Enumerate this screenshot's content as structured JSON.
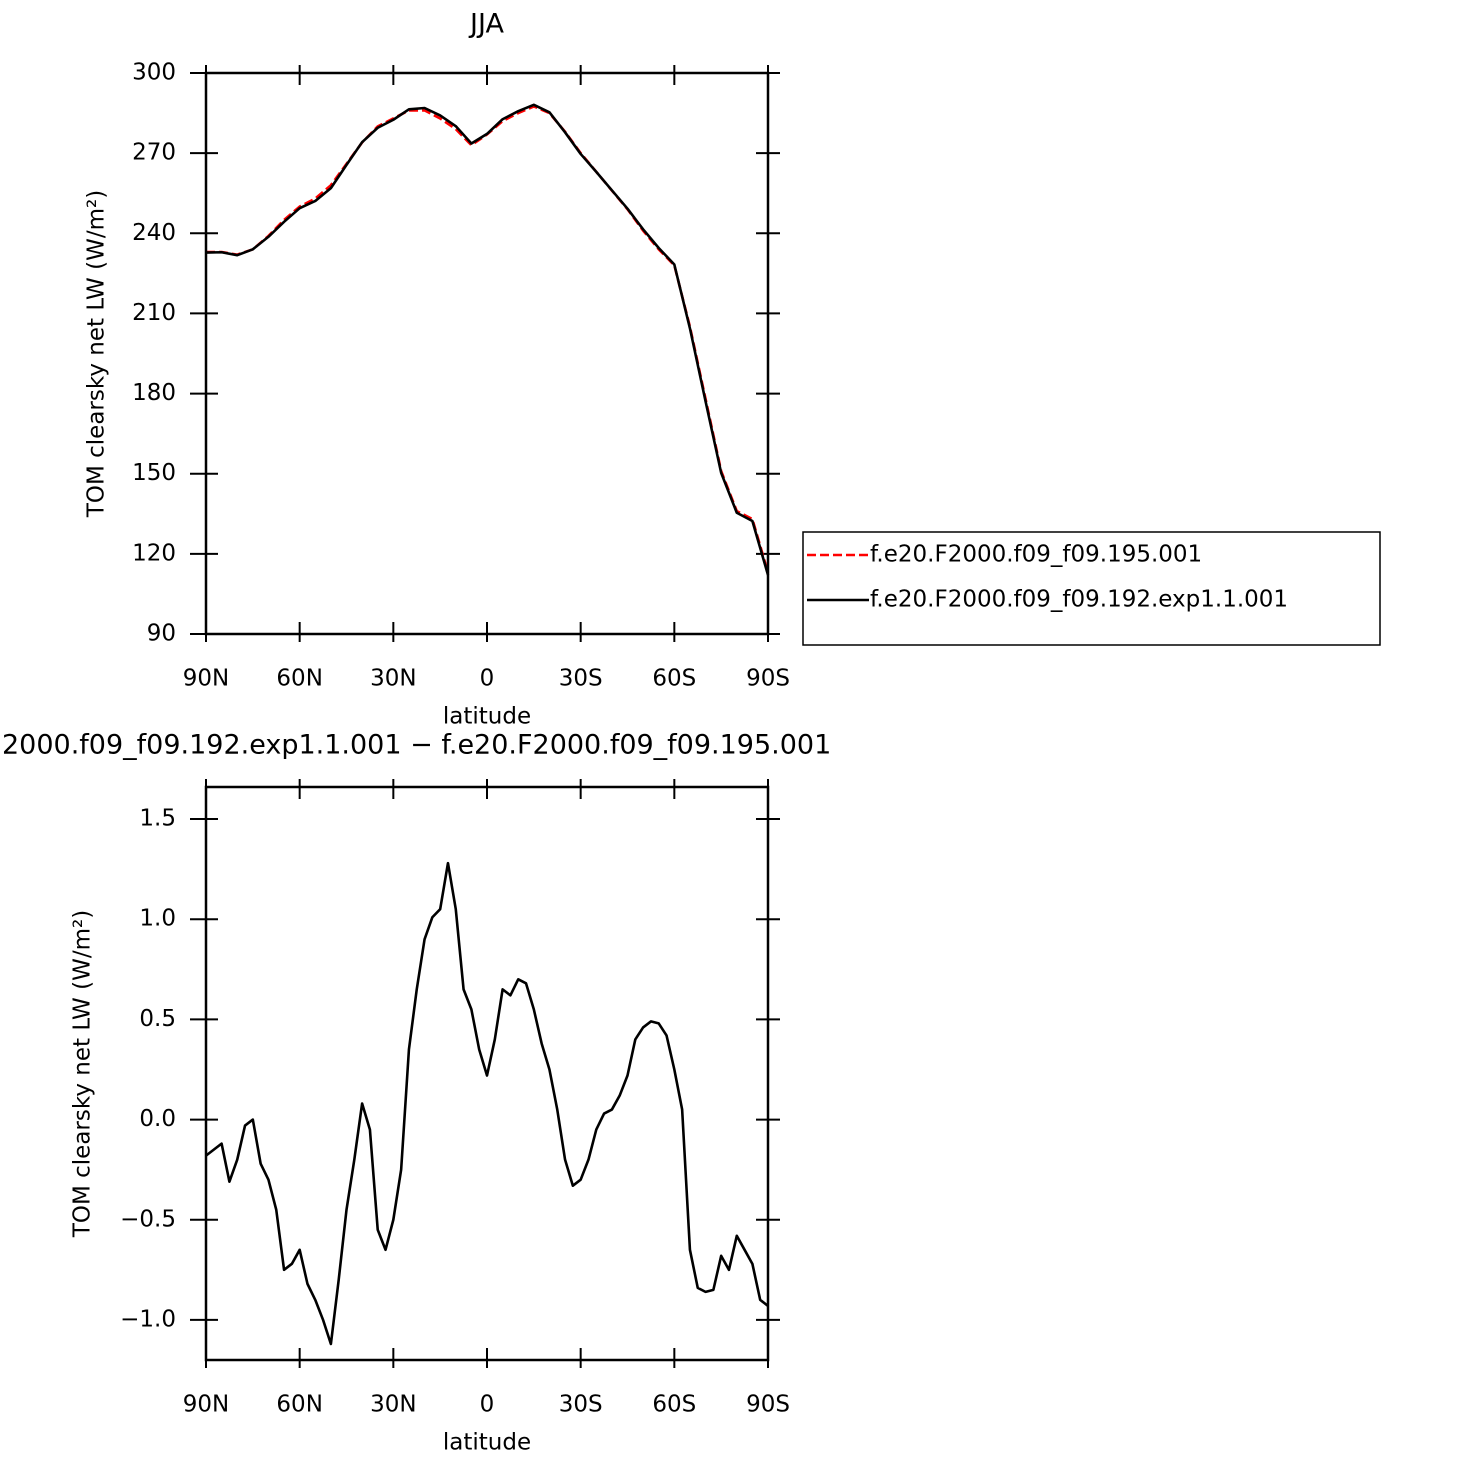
{
  "chart_data": [
    {
      "type": "line",
      "title": "JJA",
      "xlabel": "latitude",
      "ylabel": "TOM clearsky net LW (W/m²)",
      "x": [
        90,
        85,
        80,
        75,
        70,
        65,
        60,
        55,
        50,
        45,
        40,
        35,
        30,
        25,
        20,
        15,
        10,
        5,
        0,
        -5,
        -10,
        -15,
        -20,
        -25,
        -30,
        -35,
        -40,
        -45,
        -50,
        -55,
        -60,
        -65,
        -70,
        -75,
        -80,
        -85,
        -90
      ],
      "series": [
        {
          "name": "f.e20.F2000.f09_f09.195.001",
          "color": "#ff0000",
          "style": "dashed",
          "values": [
            233,
            233,
            232,
            234,
            239,
            245,
            250,
            253,
            258,
            266,
            274,
            280,
            283,
            286,
            286,
            283,
            279,
            273,
            277,
            282,
            285,
            287.5,
            285,
            278,
            270,
            263,
            256,
            249,
            241,
            234,
            228,
            205,
            178,
            151,
            136,
            133,
            113
          ]
        },
        {
          "name": "f.e20.F2000.f09_f09.192.exp1.1.001",
          "color": "#000000",
          "style": "solid",
          "values": [
            232.8,
            232.9,
            231.8,
            234,
            238.7,
            244.3,
            249.4,
            252.1,
            256.9,
            265.6,
            274.1,
            279.5,
            282.5,
            286.4,
            286.9,
            284.1,
            280.1,
            273.6,
            277.2,
            282.7,
            285.7,
            288.1,
            285.3,
            277.8,
            269.7,
            263,
            256.1,
            249.2,
            241.5,
            234.5,
            228.3,
            204.4,
            177.1,
            150.3,
            135.4,
            132.3,
            112.1
          ]
        }
      ],
      "xlim": [
        90,
        -90
      ],
      "xticks": [
        {
          "value": 90,
          "label": "90N"
        },
        {
          "value": 60,
          "label": "60N"
        },
        {
          "value": 30,
          "label": "30N"
        },
        0,
        {
          "value": -30,
          "label": "30S"
        },
        {
          "value": -60,
          "label": "60S"
        },
        {
          "value": -90,
          "label": "90S"
        }
      ],
      "ylim": [
        90,
        300
      ],
      "yticks": [
        90,
        120,
        150,
        180,
        210,
        240,
        270,
        300
      ],
      "legend": "right"
    },
    {
      "type": "line",
      "title": "2000.f09_f09.192.exp1.1.001 − f.e20.F2000.f09_f09.195.001",
      "xlabel": "latitude",
      "ylabel": "TOM clearsky net LW (W/m²)",
      "x": [
        90,
        87.5,
        85,
        82.5,
        80,
        77.5,
        75,
        72.5,
        70,
        67.5,
        65,
        62.5,
        60,
        57.5,
        55,
        52.5,
        50,
        47.5,
        45,
        42.5,
        40,
        37.5,
        35,
        32.5,
        30,
        27.5,
        25,
        22.5,
        20,
        17.5,
        15,
        12.5,
        10,
        7.5,
        5,
        2.5,
        0,
        -2.5,
        -5,
        -7.5,
        -10,
        -12.5,
        -15,
        -17.5,
        -20,
        -22.5,
        -25,
        -27.5,
        -30,
        -32.5,
        -35,
        -37.5,
        -40,
        -42.5,
        -45,
        -47.5,
        -50,
        -52.5,
        -55,
        -57.5,
        -60,
        -62.5,
        -65,
        -67.5,
        -70,
        -72.5,
        -75,
        -77.5,
        -80,
        -82.5,
        -85,
        -87.5,
        -90
      ],
      "series": [
        {
          "color": "#000000",
          "style": "solid",
          "values": [
            -0.18,
            -0.15,
            -0.12,
            -0.31,
            -0.2,
            -0.03,
            0.0,
            -0.22,
            -0.3,
            -0.45,
            -0.75,
            -0.72,
            -0.65,
            -0.82,
            -0.9,
            -1.0,
            -1.12,
            -0.8,
            -0.45,
            -0.2,
            0.08,
            -0.05,
            -0.55,
            -0.65,
            -0.5,
            -0.25,
            0.35,
            0.65,
            0.9,
            1.01,
            1.05,
            1.28,
            1.05,
            0.65,
            0.55,
            0.35,
            0.22,
            0.4,
            0.65,
            0.62,
            0.7,
            0.68,
            0.55,
            0.38,
            0.25,
            0.05,
            -0.2,
            -0.33,
            -0.3,
            -0.2,
            -0.05,
            0.03,
            0.05,
            0.12,
            0.22,
            0.4,
            0.46,
            0.49,
            0.48,
            0.42,
            0.25,
            0.05,
            -0.65,
            -0.84,
            -0.86,
            -0.85,
            -0.68,
            -0.75,
            -0.58,
            -0.65,
            -0.72,
            -0.9,
            -0.93
          ]
        }
      ],
      "xlim": [
        90,
        -90
      ],
      "xticks": [
        {
          "value": 90,
          "label": "90N"
        },
        {
          "value": 60,
          "label": "60N"
        },
        {
          "value": 30,
          "label": "30N"
        },
        0,
        {
          "value": -30,
          "label": "30S"
        },
        {
          "value": -60,
          "label": "60S"
        },
        {
          "value": -90,
          "label": "90S"
        }
      ],
      "ylim": [
        -1.2,
        1.66
      ],
      "yticks": [
        {
          "value": -1,
          "label": "−1.0"
        },
        {
          "value": -0.5,
          "label": "−0.5"
        },
        {
          "value": 0,
          "label": "0.0"
        },
        0.5,
        {
          "value": 1,
          "label": "1.0"
        },
        1.5
      ]
    }
  ]
}
